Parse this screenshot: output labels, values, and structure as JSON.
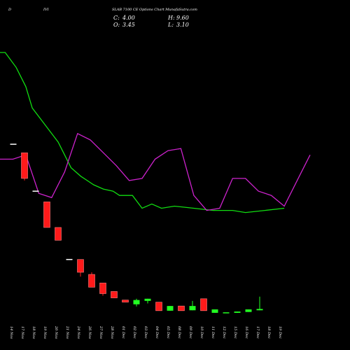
{
  "header": {
    "symbol_prefix": "D",
    "symbol_suffix": "IVI",
    "title": "SLAB 7100 CE Options Chart MunafaSutra.com",
    "ohlc": {
      "open_label": "O:",
      "open": "3.45",
      "high_label": "H:",
      "high": "9.60",
      "close_label": "C:",
      "close": "4.00",
      "low_label": "L:",
      "low": "3.10"
    }
  },
  "chart_data": {
    "type": "candlestick",
    "x": [
      "14 Nov",
      "17 Nov",
      "18 Nov",
      "19 Nov",
      "20 Nov",
      "21 Nov",
      "24 Nov",
      "26 Nov",
      "27 Nov",
      "28 Nov",
      "01 Dec",
      "02 Dec",
      "03 Dec",
      "04 Dec",
      "05 Dec",
      "08 Dec",
      "09 Dec",
      "10 Dec",
      "11 Dec",
      "12 Dec",
      "15 Dec",
      "16 Dec",
      "17 Dec",
      "18 Dec",
      "19 Dec"
    ],
    "candles": [
      {
        "o": 78.5,
        "h": 78.5,
        "c": 78.5,
        "l": 78.5,
        "dir": "flat"
      },
      {
        "o": 76.5,
        "h": 76.5,
        "c": 70.5,
        "l": 70.0,
        "dir": "down"
      },
      {
        "o": 67.5,
        "h": 67.5,
        "c": 67.5,
        "l": 67.5,
        "dir": "flat"
      },
      {
        "o": 65.0,
        "h": 65.0,
        "c": 59.0,
        "l": 59.0,
        "dir": "down"
      },
      {
        "o": 59.0,
        "h": 59.0,
        "c": 56.0,
        "l": 56.0,
        "dir": "down"
      },
      {
        "o": 51.5,
        "h": 51.5,
        "c": 51.5,
        "l": 51.5,
        "dir": "flat"
      },
      {
        "o": 51.5,
        "h": 51.5,
        "c": 48.5,
        "l": 47.5,
        "dir": "down"
      },
      {
        "o": 48.0,
        "h": 48.5,
        "c": 45.0,
        "l": 45.0,
        "dir": "down"
      },
      {
        "o": 46.0,
        "h": 46.0,
        "c": 43.5,
        "l": 43.0,
        "dir": "down"
      },
      {
        "o": 44.0,
        "h": 44.0,
        "c": 42.5,
        "l": 42.5,
        "dir": "down"
      },
      {
        "o": 42.0,
        "h": 42.0,
        "c": 41.5,
        "l": 41.5,
        "dir": "down"
      },
      {
        "o": 41.0,
        "h": 42.3,
        "c": 42.0,
        "l": 40.5,
        "dir": "up"
      },
      {
        "o": 41.8,
        "h": 42.3,
        "c": 42.3,
        "l": 41.2,
        "dir": "up"
      },
      {
        "o": 41.5,
        "h": 41.5,
        "c": 39.5,
        "l": 39.5,
        "dir": "down"
      },
      {
        "o": 39.5,
        "h": 40.6,
        "c": 40.6,
        "l": 39.5,
        "dir": "up"
      },
      {
        "o": 40.6,
        "h": 40.6,
        "c": 39.5,
        "l": 39.5,
        "dir": "down"
      },
      {
        "o": 39.6,
        "h": 41.8,
        "c": 40.6,
        "l": 39.6,
        "dir": "up"
      },
      {
        "o": 42.3,
        "h": 42.3,
        "c": 39.5,
        "l": 39.5,
        "dir": "down"
      },
      {
        "o": 39.0,
        "h": 39.8,
        "c": 39.8,
        "l": 39.0,
        "dir": "up"
      },
      {
        "o": 39.0,
        "h": 39.0,
        "c": 39.0,
        "l": 38.9,
        "dir": "up"
      },
      {
        "o": 39.0,
        "h": 39.3,
        "c": 39.3,
        "l": 39.0,
        "dir": "up"
      },
      {
        "o": 39.2,
        "h": 39.8,
        "c": 39.8,
        "l": 39.2,
        "dir": "up"
      },
      {
        "o": 39.6,
        "h": 42.8,
        "c": 39.9,
        "l": 39.6,
        "dir": "up"
      }
    ],
    "candle_x_index": [
      0,
      1,
      2,
      3,
      4,
      5,
      6,
      7,
      8,
      9,
      10,
      11,
      12,
      13,
      14,
      15,
      16,
      17,
      18,
      19,
      20,
      21,
      22
    ],
    "ma_green": [
      [
        0,
        100
      ],
      [
        0.8,
        100
      ],
      [
        2.5,
        96.5
      ],
      [
        4,
        92
      ],
      [
        5,
        87
      ],
      [
        7,
        83
      ],
      [
        9,
        79
      ],
      [
        11,
        73
      ],
      [
        12.5,
        71
      ],
      [
        14.5,
        69
      ],
      [
        16,
        68
      ],
      [
        17.5,
        67.5
      ],
      [
        18.5,
        66.5
      ],
      [
        20.5,
        66.5
      ],
      [
        22,
        63.5
      ],
      [
        23.5,
        64.5
      ],
      [
        25,
        63.5
      ],
      [
        27,
        64
      ],
      [
        30,
        63.5
      ],
      [
        33,
        63
      ],
      [
        36,
        63
      ],
      [
        38,
        62.5
      ],
      [
        41,
        63
      ],
      [
        44,
        63.5
      ]
    ],
    "ma_magenta": [
      [
        0,
        75
      ],
      [
        2,
        75
      ],
      [
        4,
        76
      ],
      [
        6,
        67
      ],
      [
        8,
        66
      ],
      [
        10,
        72
      ],
      [
        12,
        81
      ],
      [
        14,
        79.5
      ],
      [
        16,
        76.5
      ],
      [
        18,
        73.5
      ],
      [
        20,
        70
      ],
      [
        22,
        70.5
      ],
      [
        24,
        75
      ],
      [
        26,
        77
      ],
      [
        28,
        77.5
      ],
      [
        30,
        66.5
      ],
      [
        32,
        63
      ],
      [
        34,
        63.5
      ],
      [
        36,
        70.5
      ],
      [
        38,
        70.5
      ],
      [
        40,
        67.5
      ],
      [
        42,
        66.5
      ],
      [
        44,
        64
      ],
      [
        46,
        70
      ],
      [
        48,
        76
      ]
    ],
    "colors": {
      "up": "#22ff22",
      "down": "#ff1a1a",
      "flat": "#ffffff",
      "ma_green": "#11dd11",
      "ma_magenta": "#cc22cc",
      "background": "#000000"
    }
  }
}
